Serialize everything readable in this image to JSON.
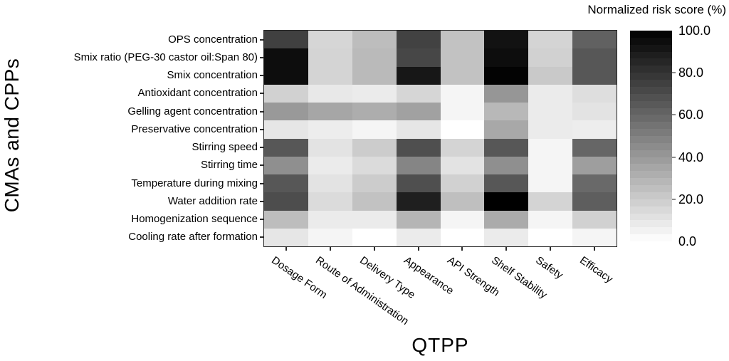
{
  "chart_data": {
    "type": "heatmap",
    "title": "Normalized risk score (%)",
    "xlabel": "QTPP",
    "ylabel": "CMAs and CPPs",
    "columns": [
      "Dosage Form",
      "Route of Administration",
      "Delivery Type",
      "Appearance",
      "API Strength",
      "Shelf Stability",
      "Safety",
      "Efficacy"
    ],
    "rows": [
      "OPS concentration",
      "Smix ratio (PEG-30 castor oil:Span 80)",
      "Smix concentration",
      "Antioxidant concentration",
      "Gelling agent concentration",
      "Preservative concentration",
      "Stirring speed",
      "Stirring time",
      "Temperature during mixing",
      "Water addition rate",
      "Homogenization sequence",
      "Cooling rate after formation"
    ],
    "values": [
      [
        75,
        16,
        26,
        74,
        24,
        93,
        17,
        62
      ],
      [
        95,
        17,
        27,
        72,
        24,
        95,
        18,
        66
      ],
      [
        95,
        17,
        27,
        91,
        24,
        99,
        21,
        66
      ],
      [
        18,
        9,
        8,
        16,
        4,
        41,
        8,
        13
      ],
      [
        40,
        35,
        32,
        37,
        4,
        28,
        8,
        11
      ],
      [
        10,
        7,
        4,
        10,
        0,
        34,
        8,
        7
      ],
      [
        66,
        11,
        20,
        69,
        17,
        66,
        4,
        60
      ],
      [
        44,
        8,
        14,
        48,
        11,
        44,
        4,
        38
      ],
      [
        66,
        11,
        20,
        69,
        18,
        66,
        4,
        59
      ],
      [
        70,
        14,
        24,
        88,
        25,
        100,
        17,
        63
      ],
      [
        26,
        8,
        8,
        29,
        4,
        33,
        4,
        18
      ],
      [
        10,
        4,
        0,
        8,
        0,
        8,
        0,
        4
      ]
    ],
    "colorbar": {
      "title": "Normalized risk score (%)",
      "ticks": [
        "100.0",
        "80.0",
        "60.0",
        "40.0",
        "20.0",
        "0.0"
      ],
      "min": 0,
      "max": 100,
      "scale": "grayscale: 0 = white, 100 = black",
      "position": "right"
    },
    "grid": false,
    "value_unit": "percent"
  }
}
